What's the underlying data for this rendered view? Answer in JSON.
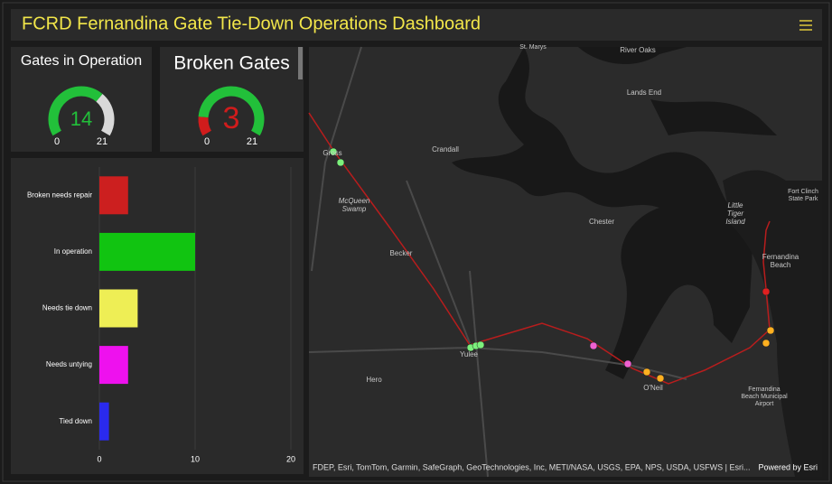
{
  "header": {
    "title": "FCRD Fernandina Gate Tie-Down Operations Dashboard"
  },
  "gauges": [
    {
      "title": "Gates in Operation",
      "value": 14,
      "min": 0,
      "max": 21,
      "color": "#22c03a",
      "rest_color": "#d9d9d9"
    },
    {
      "title": "Broken Gates",
      "value": 3,
      "min": 0,
      "max": 21,
      "color": "#d01c1c",
      "rest_color": "#22c03a"
    }
  ],
  "chart_data": {
    "type": "hbar",
    "categories": [
      "Broken needs repair",
      "In operation",
      "Needs tie down",
      "Needs untying",
      "Tied down"
    ],
    "values": [
      3,
      10,
      4,
      3,
      1
    ],
    "colors": [
      "#cc1f1f",
      "#11c411",
      "#eeee55",
      "#ee11ee",
      "#2a2aee"
    ],
    "xlim": [
      0,
      20
    ],
    "xticks": [
      0,
      10,
      20
    ],
    "grid": true
  },
  "map": {
    "labels": [
      {
        "lines": [
          "St. Marys"
        ]
      },
      {
        "lines": [
          "River Oaks"
        ]
      },
      {
        "lines": [
          "Lands End"
        ]
      },
      {
        "lines": [
          "Crandall"
        ]
      },
      {
        "lines": [
          "Gross"
        ]
      },
      {
        "lines": [
          "McQueen",
          "Swamp"
        ]
      },
      {
        "lines": [
          "Chester"
        ]
      },
      {
        "lines": [
          "Fort Clinch",
          "State Park"
        ]
      },
      {
        "lines": [
          "Little",
          "Tiger",
          "Island"
        ]
      },
      {
        "lines": [
          "Becker"
        ]
      },
      {
        "lines": [
          "Fernandina",
          "Beach"
        ]
      },
      {
        "lines": [
          "Yulee"
        ]
      },
      {
        "lines": [
          "Hero"
        ]
      },
      {
        "lines": [
          "O'Neil"
        ]
      },
      {
        "lines": [
          "Fernandina",
          "Beach Municipal",
          "Airport"
        ]
      }
    ],
    "attribution": "FDEP, Esri, TomTom, Garmin, SafeGraph, GeoTechnologies, Inc, METI/NASA, USGS, EPA, NPS, USDA, USFWS | Esri...",
    "powered": "Powered by Esri"
  }
}
